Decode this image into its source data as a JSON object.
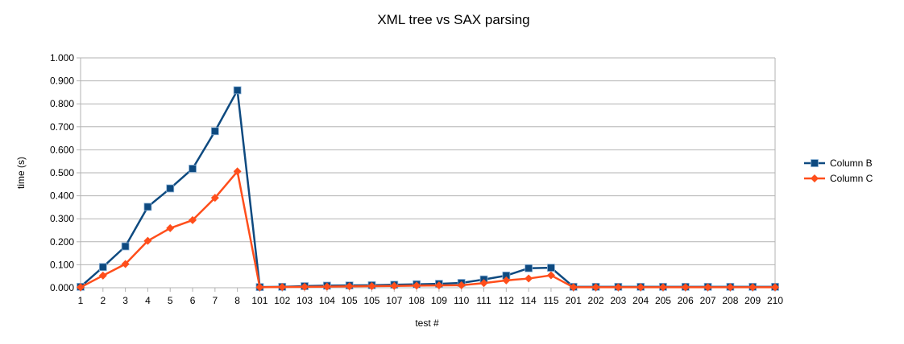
{
  "chart_data": {
    "type": "line",
    "title": "XML tree vs SAX parsing",
    "xlabel": "test #",
    "ylabel": "time (s)",
    "ylim": [
      0,
      1.0
    ],
    "yticks": [
      "0.000",
      "0.100",
      "0.200",
      "0.300",
      "0.400",
      "0.500",
      "0.600",
      "0.700",
      "0.800",
      "0.900",
      "1.000"
    ],
    "grid": true,
    "legend_position": "right",
    "categories": [
      "1",
      "2",
      "3",
      "4",
      "5",
      "6",
      "7",
      "8",
      "101",
      "102",
      "103",
      "104",
      "105",
      "105",
      "107",
      "108",
      "109",
      "110",
      "111",
      "112",
      "114",
      "115",
      "201",
      "202",
      "203",
      "204",
      "205",
      "206",
      "207",
      "208",
      "209",
      "210"
    ],
    "series": [
      {
        "name": "Column B",
        "color": "#0e4a80",
        "marker": "square",
        "values": [
          0.004,
          0.09,
          0.18,
          0.352,
          0.432,
          0.518,
          0.681,
          0.859,
          0.003,
          0.004,
          0.007,
          0.009,
          0.01,
          0.011,
          0.013,
          0.015,
          0.017,
          0.021,
          0.036,
          0.053,
          0.085,
          0.087,
          0.004,
          0.004,
          0.004,
          0.004,
          0.004,
          0.004,
          0.004,
          0.004,
          0.004,
          0.004
        ]
      },
      {
        "name": "Column C",
        "color": "#ff4e1b",
        "marker": "diamond",
        "values": [
          0.002,
          0.053,
          0.103,
          0.204,
          0.259,
          0.294,
          0.391,
          0.506,
          0.002,
          0.003,
          0.004,
          0.005,
          0.006,
          0.007,
          0.008,
          0.009,
          0.01,
          0.011,
          0.02,
          0.032,
          0.04,
          0.054,
          0.002,
          0.002,
          0.002,
          0.002,
          0.002,
          0.002,
          0.002,
          0.002,
          0.002,
          0.002
        ]
      }
    ]
  }
}
